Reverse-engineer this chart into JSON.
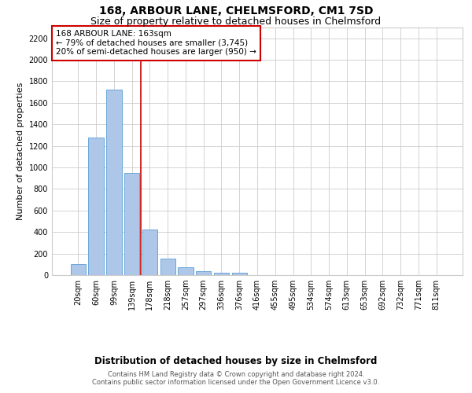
{
  "title": "168, ARBOUR LANE, CHELMSFORD, CM1 7SD",
  "subtitle": "Size of property relative to detached houses in Chelmsford",
  "xlabel": "Distribution of detached houses by size in Chelmsford",
  "ylabel": "Number of detached properties",
  "footer_line1": "Contains HM Land Registry data © Crown copyright and database right 2024.",
  "footer_line2": "Contains public sector information licensed under the Open Government Licence v3.0.",
  "categories": [
    "20sqm",
    "60sqm",
    "99sqm",
    "139sqm",
    "178sqm",
    "218sqm",
    "257sqm",
    "297sqm",
    "336sqm",
    "376sqm",
    "416sqm",
    "455sqm",
    "495sqm",
    "534sqm",
    "574sqm",
    "613sqm",
    "653sqm",
    "692sqm",
    "732sqm",
    "771sqm",
    "811sqm"
  ],
  "values": [
    100,
    1275,
    1720,
    950,
    420,
    150,
    70,
    35,
    25,
    20,
    0,
    0,
    0,
    0,
    0,
    0,
    0,
    0,
    0,
    0,
    0
  ],
  "bar_color": "#aec6e8",
  "bar_edge_color": "#5a9fd4",
  "vline_color": "#cc0000",
  "annotation_text": "168 ARBOUR LANE: 163sqm\n← 79% of detached houses are smaller (3,745)\n20% of semi-detached houses are larger (950) →",
  "annotation_box_color": "#ffffff",
  "annotation_box_edge_color": "#cc0000",
  "ylim": [
    0,
    2300
  ],
  "yticks": [
    0,
    200,
    400,
    600,
    800,
    1000,
    1200,
    1400,
    1600,
    1800,
    2000,
    2200
  ],
  "background_color": "#ffffff",
  "grid_color": "#cccccc",
  "title_fontsize": 10,
  "subtitle_fontsize": 9,
  "ylabel_fontsize": 8,
  "xlabel_fontsize": 8.5,
  "tick_fontsize": 7,
  "annotation_fontsize": 7.5,
  "footer_fontsize": 6
}
